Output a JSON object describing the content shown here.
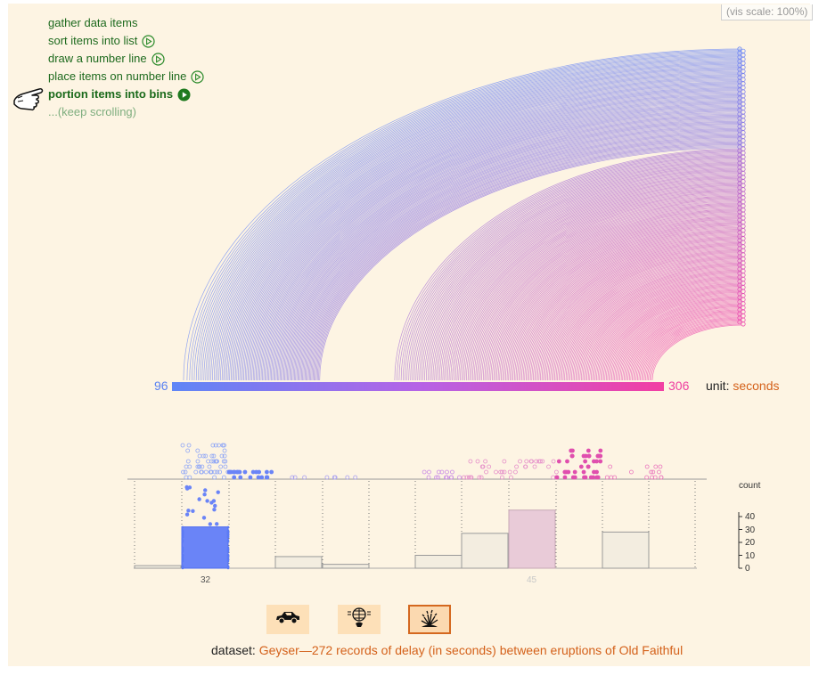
{
  "vis_scale": "(vis scale: 100%)",
  "steps": [
    {
      "label": "gather data items",
      "state": "done"
    },
    {
      "label": "sort items into list",
      "state": "play"
    },
    {
      "label": "draw a number line",
      "state": "play"
    },
    {
      "label": "place items on number line",
      "state": "play"
    },
    {
      "label": "portion items into bins",
      "state": "active"
    },
    {
      "label": "...(keep scrolling)",
      "state": "more"
    }
  ],
  "number_line": {
    "min_label": "96",
    "max_label": "306"
  },
  "unit": {
    "prefix": "unit:",
    "value": "seconds"
  },
  "colors": {
    "low": "#6b8cf7",
    "high": "#f04fae",
    "accent": "#d4611a",
    "bin_fill": "#f3ede0",
    "bin_highlight_blue": "#6a84f7",
    "bin_highlight_pink": "#e9cbd8"
  },
  "histogram": {
    "count_label": "count",
    "y_ticks": [
      "40",
      "30",
      "20",
      "10",
      "0"
    ],
    "bin_counts_left": [
      2,
      32,
      0,
      9,
      3
    ],
    "bin_counts_right": [
      10,
      27,
      45,
      0,
      28
    ],
    "bin_labels": [
      "32",
      "45"
    ]
  },
  "dataset_buttons": [
    {
      "icon": "car-icon",
      "selected": false
    },
    {
      "icon": "globe-icon",
      "selected": false
    },
    {
      "icon": "geyser-icon",
      "selected": true
    }
  ],
  "dataset": {
    "prefix": "dataset:",
    "description": "Geyser—272 records of delay (in seconds) between eruptions of Old Faithful"
  }
}
